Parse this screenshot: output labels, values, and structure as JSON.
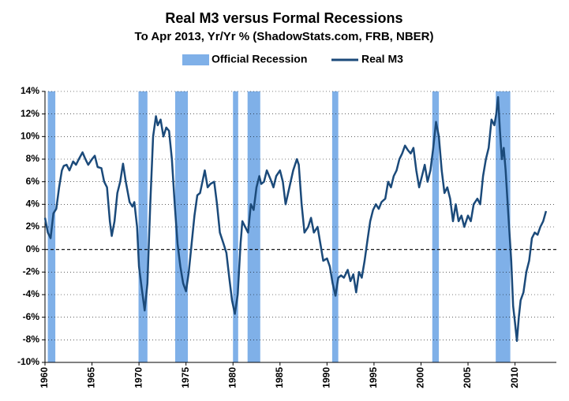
{
  "chart_data": {
    "type": "line",
    "title": "Real M3 versus Formal Recessions",
    "subtitle": "To Apr 2013, Yr/Yr % (ShadowStats.com, FRB, NBER)",
    "xlim": [
      1960,
      2014.4
    ],
    "xticks": [
      1960,
      1965,
      1970,
      1975,
      1980,
      1985,
      1990,
      1995,
      2000,
      2005,
      2010
    ],
    "ylim": [
      -10,
      14
    ],
    "yticks": [
      {
        "value": -10,
        "label": "-10%"
      },
      {
        "value": -8,
        "label": "-8%"
      },
      {
        "value": -6,
        "label": "-6%"
      },
      {
        "value": -4,
        "label": "-4%"
      },
      {
        "value": -2,
        "label": "-2%"
      },
      {
        "value": 0,
        "label": "0%"
      },
      {
        "value": 2,
        "label": "2%"
      },
      {
        "value": 4,
        "label": "4%"
      },
      {
        "value": 6,
        "label": "6%"
      },
      {
        "value": 8,
        "label": "8%"
      },
      {
        "value": 10,
        "label": "10%"
      },
      {
        "value": 12,
        "label": "12%"
      },
      {
        "value": 14,
        "label": "14%"
      }
    ],
    "grid": true,
    "legend": "top",
    "recessions": {
      "name": "Official Recession",
      "color": "#7fb0e8",
      "ranges": [
        [
          1960.3,
          1961.1
        ],
        [
          1969.95,
          1970.9
        ],
        [
          1973.85,
          1975.2
        ],
        [
          1980.0,
          1980.55
        ],
        [
          1981.55,
          1982.9
        ],
        [
          1990.55,
          1991.2
        ],
        [
          2001.2,
          2001.9
        ],
        [
          2007.95,
          2009.5
        ]
      ]
    },
    "x": [
      1960.0,
      1960.3,
      1960.6,
      1960.9,
      1961.2,
      1961.5,
      1961.8,
      1962.0,
      1962.3,
      1962.6,
      1963.0,
      1963.3,
      1963.6,
      1964.0,
      1964.3,
      1964.6,
      1965.0,
      1965.3,
      1965.6,
      1966.0,
      1966.3,
      1966.6,
      1966.9,
      1967.1,
      1967.4,
      1967.7,
      1968.0,
      1968.3,
      1968.6,
      1969.0,
      1969.3,
      1969.5,
      1969.8,
      1970.0,
      1970.3,
      1970.6,
      1970.9,
      1971.2,
      1971.5,
      1971.8,
      1972.0,
      1972.3,
      1972.6,
      1972.9,
      1973.2,
      1973.5,
      1973.8,
      1974.1,
      1974.4,
      1974.7,
      1975.0,
      1975.3,
      1975.6,
      1975.9,
      1976.2,
      1976.5,
      1976.8,
      1977.0,
      1977.3,
      1977.6,
      1978.0,
      1978.3,
      1978.6,
      1979.0,
      1979.3,
      1979.6,
      1979.9,
      1980.2,
      1980.5,
      1980.8,
      1981.0,
      1981.3,
      1981.6,
      1981.9,
      1982.2,
      1982.5,
      1982.8,
      1983.0,
      1983.3,
      1983.6,
      1984.0,
      1984.3,
      1984.6,
      1985.0,
      1985.3,
      1985.6,
      1986.0,
      1986.4,
      1986.8,
      1987.0,
      1987.3,
      1987.6,
      1988.0,
      1988.3,
      1988.6,
      1989.0,
      1989.3,
      1989.6,
      1990.0,
      1990.3,
      1990.6,
      1990.9,
      1991.2,
      1991.5,
      1991.8,
      1992.2,
      1992.5,
      1992.8,
      1993.1,
      1993.4,
      1993.7,
      1994.0,
      1994.3,
      1994.6,
      1994.9,
      1995.2,
      1995.5,
      1995.8,
      1996.2,
      1996.5,
      1996.8,
      1997.1,
      1997.4,
      1997.7,
      1998.0,
      1998.3,
      1998.6,
      1998.9,
      1999.2,
      1999.5,
      1999.8,
      2000.1,
      2000.4,
      2000.7,
      2001.0,
      2001.3,
      2001.6,
      2001.9,
      2002.2,
      2002.5,
      2002.8,
      2003.1,
      2003.4,
      2003.7,
      2004.0,
      2004.3,
      2004.6,
      2005.0,
      2005.3,
      2005.6,
      2006.0,
      2006.3,
      2006.6,
      2006.9,
      2007.2,
      2007.5,
      2007.8,
      2008.0,
      2008.2,
      2008.4,
      2008.6,
      2008.8,
      2009.0,
      2009.3,
      2009.6,
      2009.8,
      2010.0,
      2010.2,
      2010.4,
      2010.6,
      2010.9,
      2011.2,
      2011.5,
      2011.8,
      2012.1,
      2012.4,
      2012.7,
      2013.0,
      2013.3
    ],
    "series": [
      {
        "name": "Real M3",
        "color": "#1b4a7a",
        "values": [
          2.8,
          1.5,
          1.0,
          3.2,
          3.6,
          5.5,
          7.0,
          7.4,
          7.5,
          7.0,
          7.8,
          7.5,
          8.0,
          8.6,
          8.0,
          7.5,
          8.0,
          8.3,
          7.3,
          7.2,
          6.0,
          5.5,
          2.5,
          1.2,
          2.5,
          5.0,
          6.0,
          7.6,
          6.0,
          4.2,
          3.8,
          4.2,
          2.0,
          -1.5,
          -3.5,
          -5.4,
          -3.0,
          4.0,
          10.0,
          11.8,
          11.0,
          11.5,
          10.0,
          10.8,
          10.5,
          8.0,
          4.0,
          0.5,
          -1.5,
          -3.0,
          -3.7,
          -2.0,
          0.5,
          3.0,
          4.8,
          5.0,
          6.2,
          7.0,
          5.5,
          5.8,
          6.0,
          4.0,
          1.5,
          0.5,
          -0.3,
          -2.5,
          -4.5,
          -5.7,
          -4.0,
          0.5,
          2.5,
          2.0,
          1.5,
          4.0,
          3.5,
          5.5,
          6.5,
          5.8,
          6.0,
          7.0,
          6.2,
          5.5,
          6.5,
          7.0,
          6.0,
          4.0,
          5.5,
          7.0,
          8.0,
          7.5,
          4.0,
          1.5,
          2.0,
          2.8,
          1.5,
          2.0,
          0.5,
          -1.0,
          -0.8,
          -1.5,
          -3.0,
          -4.1,
          -2.5,
          -2.3,
          -2.5,
          -1.8,
          -2.8,
          -2.2,
          -3.8,
          -2.0,
          -2.5,
          -1.0,
          0.8,
          2.5,
          3.5,
          4.0,
          3.6,
          4.2,
          4.5,
          6.0,
          5.5,
          6.5,
          7.0,
          8.0,
          8.5,
          9.2,
          8.8,
          8.5,
          9.0,
          7.0,
          5.5,
          6.5,
          7.5,
          6.0,
          7.0,
          9.0,
          11.3,
          10.0,
          7.0,
          5.0,
          5.5,
          4.5,
          2.5,
          4.0,
          2.5,
          3.0,
          2.0,
          3.0,
          2.5,
          4.0,
          4.5,
          4.0,
          6.5,
          8.0,
          9.0,
          11.5,
          11.0,
          12.0,
          13.5,
          10.5,
          8.0,
          9.0,
          7.0,
          3.0,
          -1.0,
          -5.0,
          -6.5,
          -8.1,
          -6.0,
          -4.5,
          -3.8,
          -2.0,
          -1.0,
          1.0,
          1.5,
          1.3,
          2.0,
          2.5,
          3.4
        ]
      }
    ]
  }
}
